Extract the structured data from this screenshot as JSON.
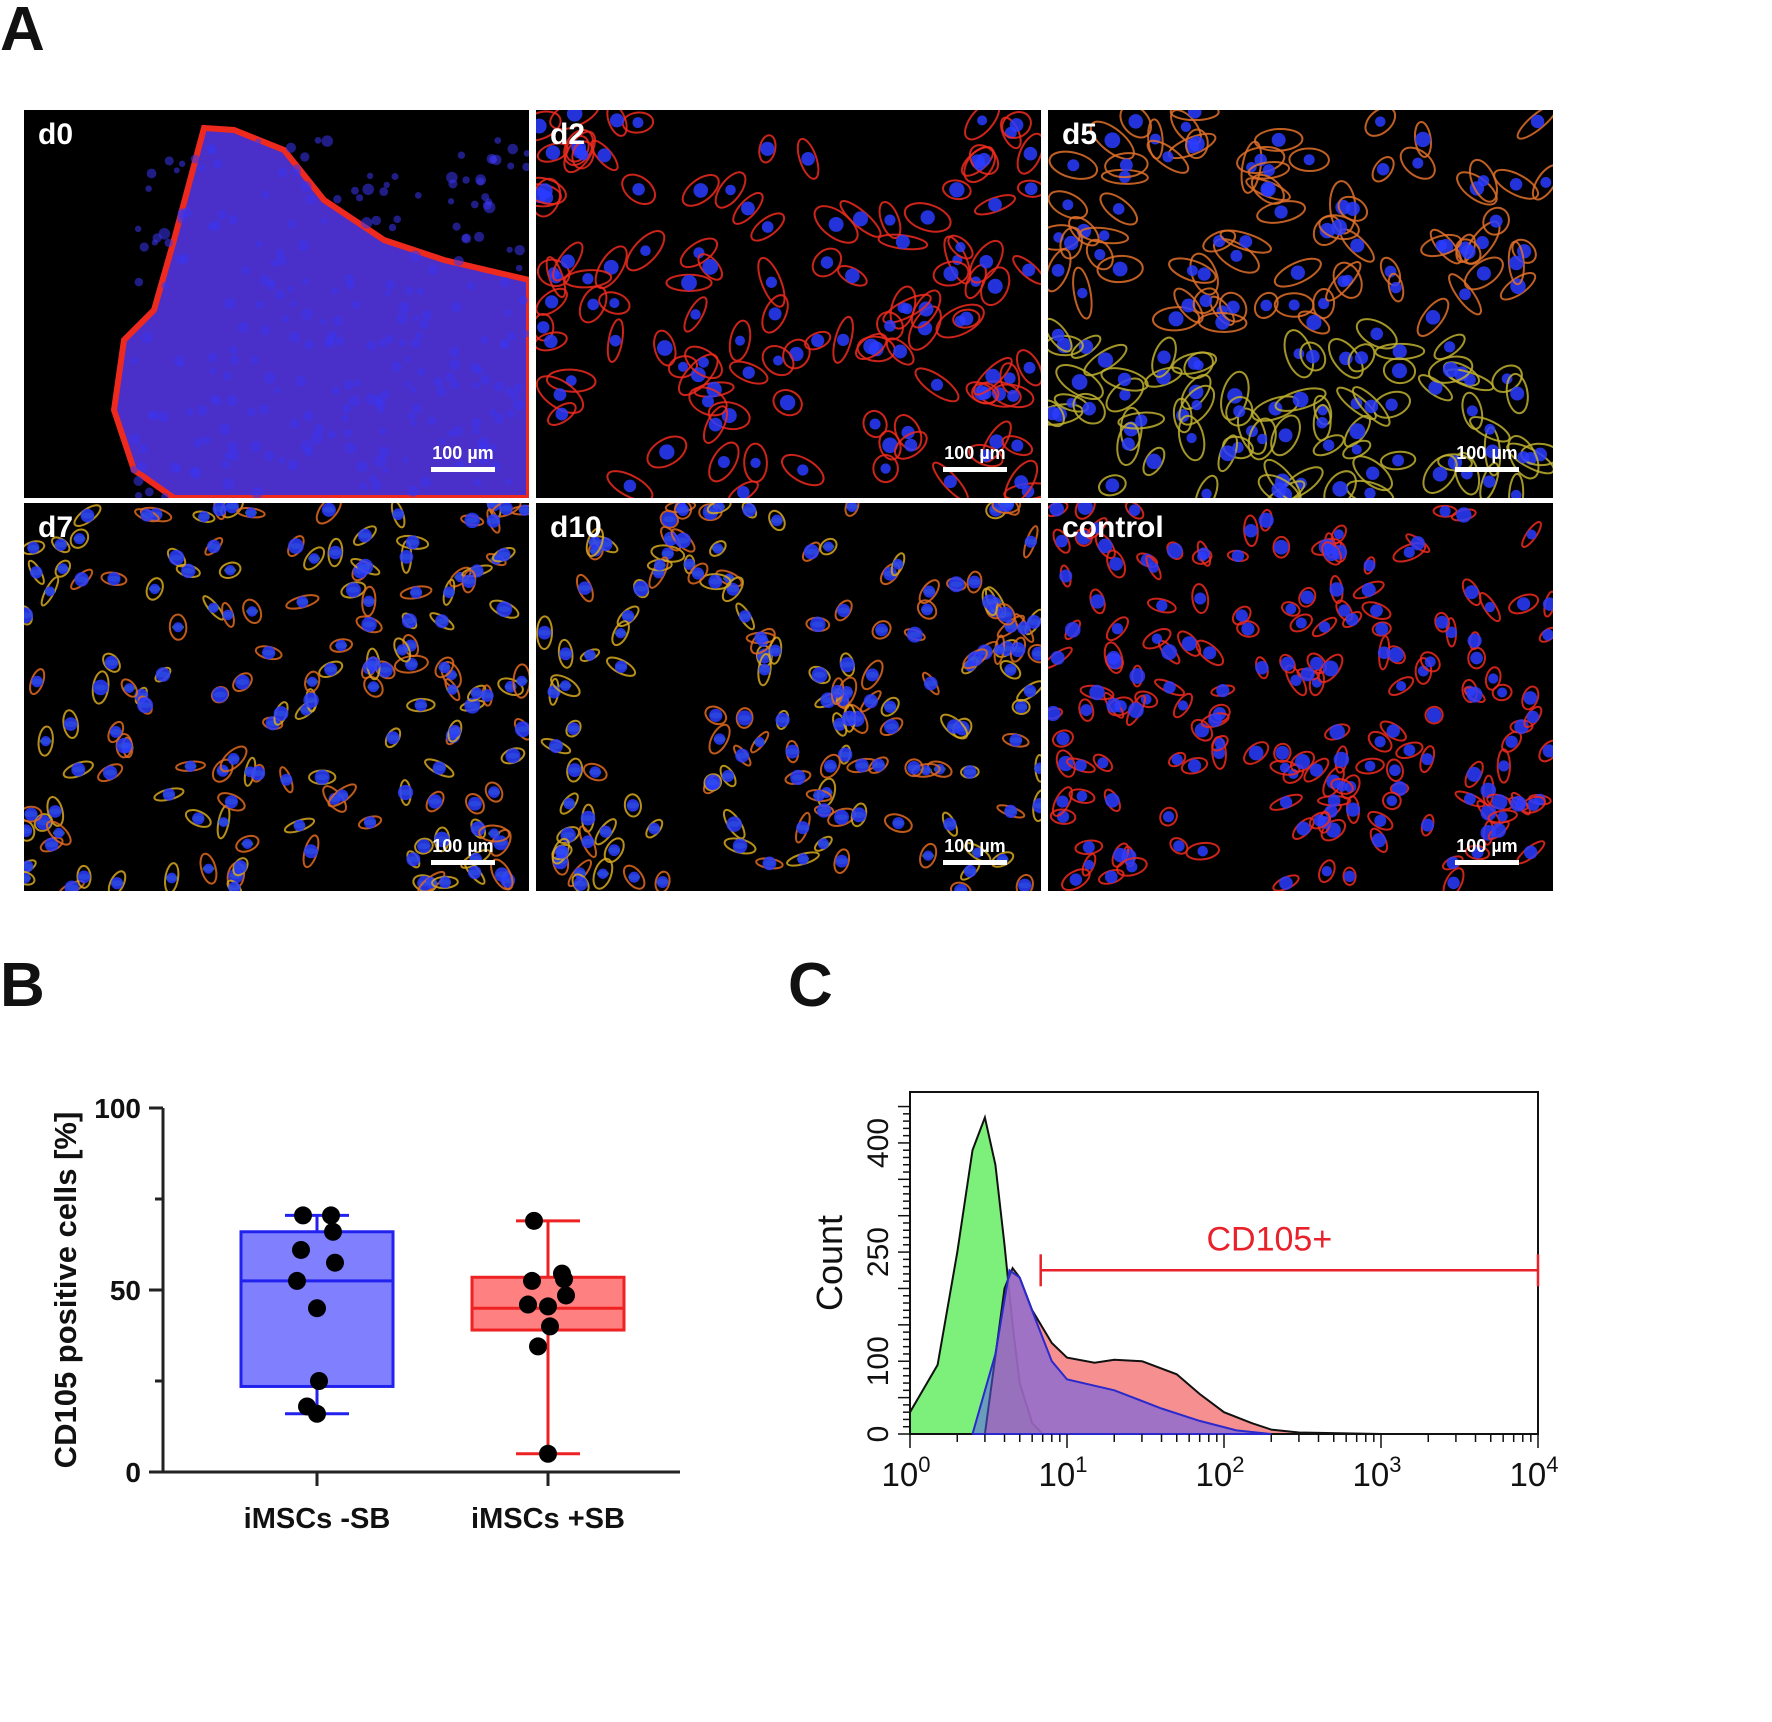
{
  "panel_a": {
    "letter": "A",
    "images": [
      {
        "label": "d0",
        "scalebar": "100 µm"
      },
      {
        "label": "d2",
        "scalebar": "100 µm"
      },
      {
        "label": "d5",
        "scalebar": "100 µm"
      },
      {
        "label": "d7",
        "scalebar": "100 µm"
      },
      {
        "label": "d10",
        "scalebar": "100 µm"
      },
      {
        "label": "control",
        "scalebar": "100 µm"
      }
    ],
    "colors": {
      "phalloidin": "#ee2a1e",
      "nuclei": "#2a3cff",
      "marker": "#55e04a"
    }
  },
  "panel_b": {
    "letter": "B"
  },
  "panel_c": {
    "letter": "C"
  },
  "chart_data": [
    {
      "type": "box",
      "ylabel": "CD105 positive cells [%]",
      "ylim": [
        0,
        100
      ],
      "yticks": [
        "0",
        "50",
        "100"
      ],
      "categories": [
        "iMSCs -SB",
        "iMSCs +SB"
      ],
      "series": [
        {
          "color": "#2222ee",
          "fill": "#8080ff",
          "box": {
            "min": 16,
            "q1": 23.5,
            "median": 52.5,
            "q3": 66,
            "max": 70.5
          },
          "points": [
            70.5,
            70.5,
            66,
            61,
            57.5,
            52.5,
            45,
            25,
            18,
            16
          ]
        },
        {
          "color": "#ee2222",
          "fill": "#ff8080",
          "box": {
            "min": 5,
            "q1": 39,
            "median": 45,
            "q3": 53.5,
            "max": 69
          },
          "points": [
            69,
            54.5,
            53,
            52.5,
            48.5,
            46,
            45.5,
            40,
            34.5,
            5
          ]
        }
      ]
    },
    {
      "type": "area",
      "ylabel": "Count",
      "xscale": "log",
      "xlim": [
        1,
        10000
      ],
      "xticks": [
        {
          "base": "10",
          "exp": "0"
        },
        {
          "base": "10",
          "exp": "1"
        },
        {
          "base": "10",
          "exp": "2"
        },
        {
          "base": "10",
          "exp": "3"
        },
        {
          "base": "10",
          "exp": "4"
        }
      ],
      "yticks": [
        "0",
        "100",
        "250",
        "400"
      ],
      "gate": {
        "label": "CD105+",
        "from": 6.8,
        "to": 10000,
        "color": "#e8212a"
      },
      "series": [
        {
          "color": "#6ff06b",
          "points": [
            [
              1,
              30
            ],
            [
              1.5,
              95
            ],
            [
              2,
              250
            ],
            [
              2.5,
              390
            ],
            [
              3,
              435
            ],
            [
              3.5,
              370
            ],
            [
              4,
              260
            ],
            [
              4.5,
              150
            ],
            [
              5,
              70
            ],
            [
              6,
              15
            ],
            [
              7,
              0
            ]
          ]
        },
        {
          "color": "#f06868",
          "points": [
            [
              3,
              0
            ],
            [
              4,
              200
            ],
            [
              4.5,
              228
            ],
            [
              5,
              215
            ],
            [
              6,
              170
            ],
            [
              8,
              125
            ],
            [
              10,
              105
            ],
            [
              15,
              98
            ],
            [
              20,
              102
            ],
            [
              30,
              100
            ],
            [
              50,
              82
            ],
            [
              70,
              55
            ],
            [
              100,
              30
            ],
            [
              150,
              15
            ],
            [
              200,
              6
            ],
            [
              300,
              2
            ],
            [
              1000,
              0
            ]
          ]
        },
        {
          "color": "#5555ee",
          "points": [
            [
              2.5,
              0
            ],
            [
              3.5,
              110
            ],
            [
              4.3,
              225
            ],
            [
              5,
              215
            ],
            [
              6.5,
              150
            ],
            [
              8,
              100
            ],
            [
              10,
              75
            ],
            [
              20,
              60
            ],
            [
              40,
              35
            ],
            [
              70,
              18
            ],
            [
              120,
              5
            ],
            [
              200,
              0
            ]
          ]
        }
      ]
    }
  ]
}
